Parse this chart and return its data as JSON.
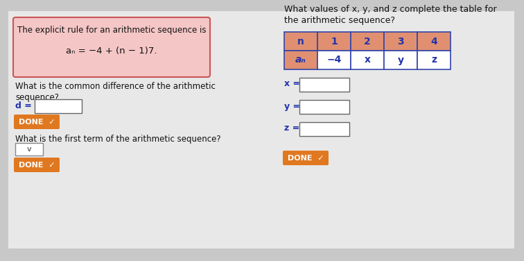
{
  "bg_color": "#c8c8c8",
  "panel_bg": "#e8e8e8",
  "left_box_bg": "#f5c6c6",
  "left_box_border": "#cc5555",
  "left_box_title": "The explicit rule for an arithmetic sequence is",
  "left_box_formula": "aₙ = −4 + (n − 1)7.",
  "q1_text_line1": "What is the common difference of the arithmetic",
  "q1_text_line2": "sequence?",
  "q1_label": "d =",
  "done_bg": "#e07820",
  "done_text": "DONE",
  "done_check": "✓",
  "q2_text": "What is the first term of the arithmetic sequence?",
  "dropdown_text": "v",
  "right_title1": "What values of x, y, and z complete the table for",
  "right_title2": "the arithmetic sequence?",
  "table_header": [
    "n",
    "1",
    "2",
    "3",
    "4"
  ],
  "table_row_label": "aₙ",
  "table_row_values": [
    "−4",
    "x",
    "y",
    "z"
  ],
  "table_header_bg": "#e09070",
  "table_label_bg": "#e09070",
  "table_row_bg": "#ffffff",
  "table_border": "#3344aa",
  "var_labels": [
    "x =",
    "y =",
    "z ="
  ],
  "text_color_dark": "#222244",
  "text_color_blue": "#2233aa",
  "text_color_black": "#111111"
}
